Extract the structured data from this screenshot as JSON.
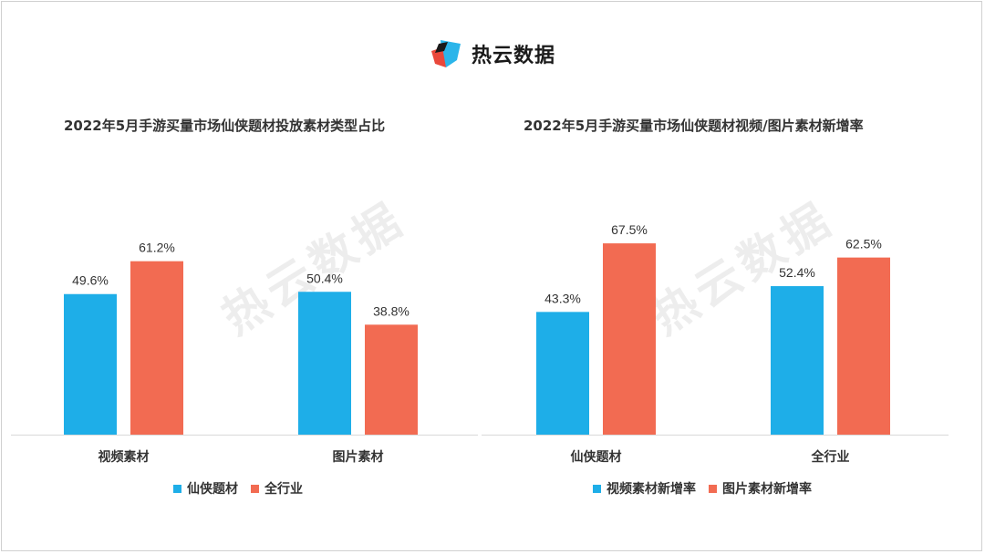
{
  "brand": {
    "name": "热云数据"
  },
  "watermark": "热云数据",
  "colors": {
    "blue": "#1EAEE8",
    "red": "#F26B52"
  },
  "chart_data": [
    {
      "type": "bar",
      "title": "2022年5月手游买量市场仙侠题材投放素材类型占比",
      "categories": [
        "视频素材",
        "图片素材"
      ],
      "series": [
        {
          "name": "仙侠题材",
          "values": [
            49.6,
            50.4
          ],
          "labels": [
            "49.6%",
            "50.4%"
          ]
        },
        {
          "name": "全行业",
          "values": [
            61.2,
            38.8
          ],
          "labels": [
            "61.2%",
            "38.8%"
          ]
        }
      ],
      "ylim": [
        0,
        100
      ],
      "legend": "bottom"
    },
    {
      "type": "bar",
      "title": "2022年5月手游买量市场仙侠题材视频/图片素材新增率",
      "categories": [
        "仙侠题材",
        "全行业"
      ],
      "series": [
        {
          "name": "视频素材新增率",
          "values": [
            43.3,
            52.4
          ],
          "labels": [
            "43.3%",
            "52.4%"
          ]
        },
        {
          "name": "图片素材新增率",
          "values": [
            67.5,
            62.5
          ],
          "labels": [
            "67.5%",
            "62.5%"
          ]
        }
      ],
      "ylim": [
        0,
        100
      ],
      "legend": "bottom"
    }
  ]
}
